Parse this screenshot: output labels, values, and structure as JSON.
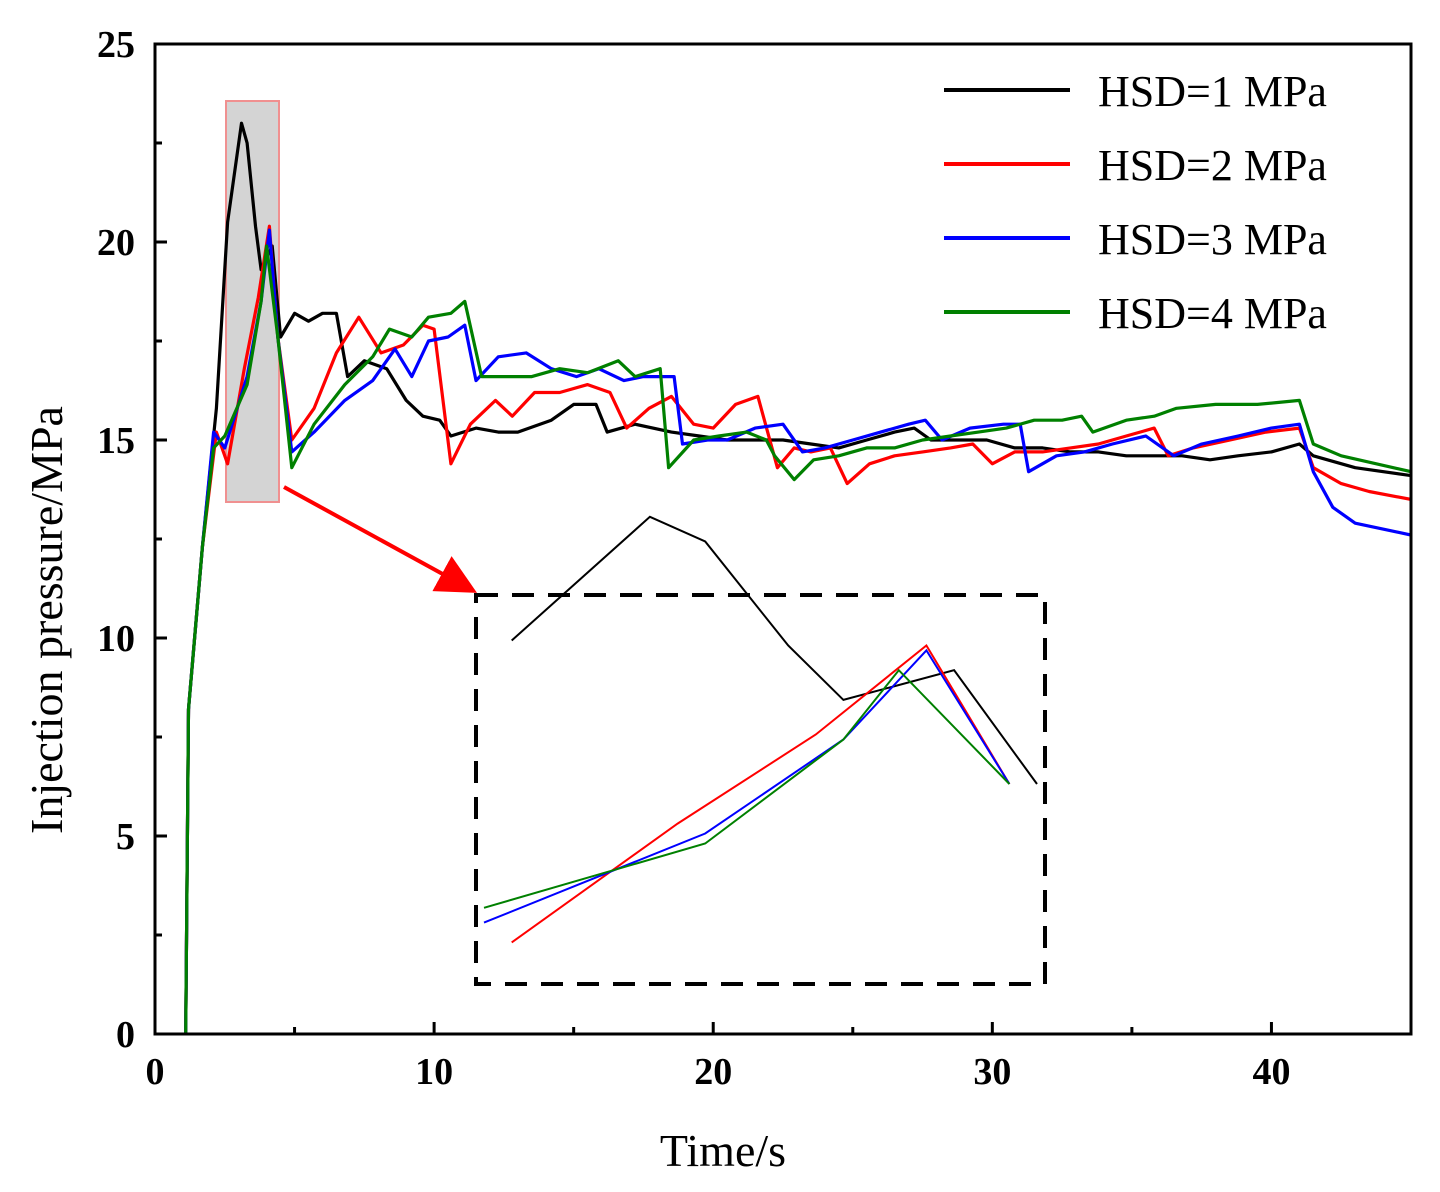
{
  "chart_data": {
    "type": "line",
    "xlabel": "Time/s",
    "ylabel": "Injection pressure/MPa",
    "xlim": [
      0,
      45
    ],
    "ylim": [
      0,
      25
    ],
    "xticks": [
      0,
      10,
      20,
      30,
      40
    ],
    "yticks": [
      0,
      5,
      10,
      15,
      20,
      25
    ],
    "legend_position": "top-right",
    "series": [
      {
        "name": "HSD=1 MPa",
        "color": "#000000",
        "points": [
          [
            1.1,
            0
          ],
          [
            1.2,
            8.2
          ],
          [
            1.7,
            12.3
          ],
          [
            2.2,
            15.8
          ],
          [
            2.6,
            20.5
          ],
          [
            3.1,
            23
          ],
          [
            3.3,
            22.5
          ],
          [
            3.6,
            20.4
          ],
          [
            3.8,
            19.3
          ],
          [
            4.2,
            19.9
          ],
          [
            4.5,
            17.6
          ],
          [
            5.0,
            18.2
          ],
          [
            5.5,
            18
          ],
          [
            6.0,
            18.2
          ],
          [
            6.5,
            18.2
          ],
          [
            6.9,
            16.6
          ],
          [
            7.5,
            17
          ],
          [
            8.3,
            16.8
          ],
          [
            9.0,
            16
          ],
          [
            9.6,
            15.6
          ],
          [
            10.2,
            15.5
          ],
          [
            10.6,
            15.1
          ],
          [
            11.5,
            15.3
          ],
          [
            12.3,
            15.2
          ],
          [
            13.0,
            15.2
          ],
          [
            14.2,
            15.5
          ],
          [
            15.0,
            15.9
          ],
          [
            15.8,
            15.9
          ],
          [
            16.2,
            15.2
          ],
          [
            17.2,
            15.4
          ],
          [
            18.5,
            15.2
          ],
          [
            19.5,
            15.1
          ],
          [
            20.5,
            15.0
          ],
          [
            21.5,
            15.0
          ],
          [
            22.5,
            15.0
          ],
          [
            23.5,
            14.9
          ],
          [
            24.5,
            14.8
          ],
          [
            25.5,
            15.0
          ],
          [
            26.5,
            15.2
          ],
          [
            27.2,
            15.3
          ],
          [
            27.8,
            15.0
          ],
          [
            28.8,
            15.0
          ],
          [
            29.8,
            15.0
          ],
          [
            30.8,
            14.8
          ],
          [
            31.8,
            14.8
          ],
          [
            32.8,
            14.7
          ],
          [
            33.8,
            14.7
          ],
          [
            34.8,
            14.6
          ],
          [
            35.8,
            14.6
          ],
          [
            36.8,
            14.6
          ],
          [
            37.8,
            14.5
          ],
          [
            38.8,
            14.6
          ],
          [
            40.0,
            14.7
          ],
          [
            41.0,
            14.9
          ],
          [
            41.5,
            14.6
          ],
          [
            43.0,
            14.3
          ],
          [
            45.0,
            14.1
          ]
        ]
      },
      {
        "name": "HSD=2 MPa",
        "color": "#ff0000",
        "points": [
          [
            1.1,
            0
          ],
          [
            1.2,
            8.2
          ],
          [
            1.7,
            12.3
          ],
          [
            2.2,
            15.2
          ],
          [
            2.6,
            14.4
          ],
          [
            3.2,
            16.8
          ],
          [
            3.7,
            18.6
          ],
          [
            4.1,
            20.4
          ],
          [
            4.4,
            17.6
          ],
          [
            4.9,
            15.0
          ],
          [
            5.7,
            15.8
          ],
          [
            6.5,
            17.2
          ],
          [
            7.3,
            18.1
          ],
          [
            8.1,
            17.2
          ],
          [
            8.9,
            17.4
          ],
          [
            9.6,
            17.9
          ],
          [
            10.0,
            17.8
          ],
          [
            10.6,
            14.4
          ],
          [
            11.3,
            15.4
          ],
          [
            12.2,
            16.0
          ],
          [
            12.8,
            15.6
          ],
          [
            13.6,
            16.2
          ],
          [
            14.5,
            16.2
          ],
          [
            15.5,
            16.4
          ],
          [
            16.3,
            16.2
          ],
          [
            16.9,
            15.3
          ],
          [
            17.7,
            15.8
          ],
          [
            18.5,
            16.1
          ],
          [
            19.3,
            15.4
          ],
          [
            20.0,
            15.3
          ],
          [
            20.8,
            15.9
          ],
          [
            21.6,
            16.1
          ],
          [
            22.3,
            14.3
          ],
          [
            22.9,
            14.8
          ],
          [
            23.5,
            14.7
          ],
          [
            24.2,
            14.8
          ],
          [
            24.8,
            13.9
          ],
          [
            25.6,
            14.4
          ],
          [
            26.5,
            14.6
          ],
          [
            27.5,
            14.7
          ],
          [
            28.5,
            14.8
          ],
          [
            29.3,
            14.9
          ],
          [
            30.0,
            14.4
          ],
          [
            30.8,
            14.7
          ],
          [
            31.8,
            14.7
          ],
          [
            32.8,
            14.8
          ],
          [
            33.8,
            14.9
          ],
          [
            34.8,
            15.1
          ],
          [
            35.8,
            15.3
          ],
          [
            36.3,
            14.6
          ],
          [
            37.2,
            14.8
          ],
          [
            38.5,
            15.0
          ],
          [
            39.8,
            15.2
          ],
          [
            41.0,
            15.3
          ],
          [
            41.5,
            14.3
          ],
          [
            42.5,
            13.9
          ],
          [
            43.5,
            13.7
          ],
          [
            45.0,
            13.5
          ]
        ]
      },
      {
        "name": "HSD=3 MPa",
        "color": "#0000ff",
        "points": [
          [
            1.1,
            0
          ],
          [
            1.2,
            8.2
          ],
          [
            1.7,
            12.3
          ],
          [
            2.1,
            15.2
          ],
          [
            2.5,
            14.8
          ],
          [
            3.3,
            16.6
          ],
          [
            3.8,
            18.5
          ],
          [
            4.1,
            20.3
          ],
          [
            4.4,
            17.6
          ],
          [
            4.9,
            14.7
          ],
          [
            5.7,
            15.2
          ],
          [
            6.8,
            16.0
          ],
          [
            7.8,
            16.5
          ],
          [
            8.6,
            17.3
          ],
          [
            9.2,
            16.6
          ],
          [
            9.8,
            17.5
          ],
          [
            10.5,
            17.6
          ],
          [
            11.1,
            17.9
          ],
          [
            11.5,
            16.5
          ],
          [
            12.3,
            17.1
          ],
          [
            13.3,
            17.2
          ],
          [
            14.2,
            16.8
          ],
          [
            15.1,
            16.6
          ],
          [
            15.9,
            16.8
          ],
          [
            16.8,
            16.5
          ],
          [
            17.5,
            16.6
          ],
          [
            18.6,
            16.6
          ],
          [
            18.9,
            14.9
          ],
          [
            19.8,
            15.0
          ],
          [
            20.5,
            15.0
          ],
          [
            21.5,
            15.3
          ],
          [
            22.5,
            15.4
          ],
          [
            23.2,
            14.7
          ],
          [
            24.0,
            14.8
          ],
          [
            25.0,
            15.0
          ],
          [
            26.0,
            15.2
          ],
          [
            27.0,
            15.4
          ],
          [
            27.6,
            15.5
          ],
          [
            28.2,
            15.0
          ],
          [
            29.2,
            15.3
          ],
          [
            30.4,
            15.4
          ],
          [
            31.0,
            15.4
          ],
          [
            31.3,
            14.2
          ],
          [
            32.3,
            14.6
          ],
          [
            33.3,
            14.7
          ],
          [
            34.3,
            14.9
          ],
          [
            35.5,
            15.1
          ],
          [
            36.5,
            14.6
          ],
          [
            37.5,
            14.9
          ],
          [
            38.8,
            15.1
          ],
          [
            40.0,
            15.3
          ],
          [
            41.0,
            15.4
          ],
          [
            41.5,
            14.2
          ],
          [
            42.2,
            13.3
          ],
          [
            43.0,
            12.9
          ],
          [
            45.0,
            12.6
          ]
        ]
      },
      {
        "name": "HSD=4 MPa",
        "color": "#008000",
        "points": [
          [
            1.1,
            0
          ],
          [
            1.2,
            8.2
          ],
          [
            1.7,
            12.3
          ],
          [
            2.1,
            14.8
          ],
          [
            2.5,
            15.1
          ],
          [
            3.3,
            16.4
          ],
          [
            3.8,
            18.5
          ],
          [
            4.0,
            19.9
          ],
          [
            4.4,
            17.6
          ],
          [
            4.9,
            14.3
          ],
          [
            5.7,
            15.4
          ],
          [
            6.8,
            16.4
          ],
          [
            7.8,
            17.1
          ],
          [
            8.4,
            17.8
          ],
          [
            9.2,
            17.6
          ],
          [
            9.8,
            18.1
          ],
          [
            10.6,
            18.2
          ],
          [
            11.1,
            18.5
          ],
          [
            11.7,
            16.6
          ],
          [
            12.5,
            16.6
          ],
          [
            13.5,
            16.6
          ],
          [
            14.5,
            16.8
          ],
          [
            15.5,
            16.7
          ],
          [
            16.6,
            17.0
          ],
          [
            17.2,
            16.6
          ],
          [
            18.1,
            16.8
          ],
          [
            18.4,
            14.3
          ],
          [
            19.3,
            15.0
          ],
          [
            20.2,
            15.1
          ],
          [
            21.2,
            15.2
          ],
          [
            21.9,
            15.0
          ],
          [
            22.2,
            14.6
          ],
          [
            22.9,
            14.0
          ],
          [
            23.6,
            14.5
          ],
          [
            24.5,
            14.6
          ],
          [
            25.5,
            14.8
          ],
          [
            26.5,
            14.8
          ],
          [
            27.5,
            15.0
          ],
          [
            28.5,
            15.1
          ],
          [
            29.5,
            15.2
          ],
          [
            30.5,
            15.3
          ],
          [
            31.5,
            15.5
          ],
          [
            32.5,
            15.5
          ],
          [
            33.2,
            15.6
          ],
          [
            33.6,
            15.2
          ],
          [
            34.8,
            15.5
          ],
          [
            35.8,
            15.6
          ],
          [
            36.6,
            15.8
          ],
          [
            38.0,
            15.9
          ],
          [
            39.5,
            15.9
          ],
          [
            41.0,
            16.0
          ],
          [
            41.5,
            14.9
          ],
          [
            42.5,
            14.6
          ],
          [
            45.0,
            14.2
          ]
        ]
      }
    ]
  }
}
